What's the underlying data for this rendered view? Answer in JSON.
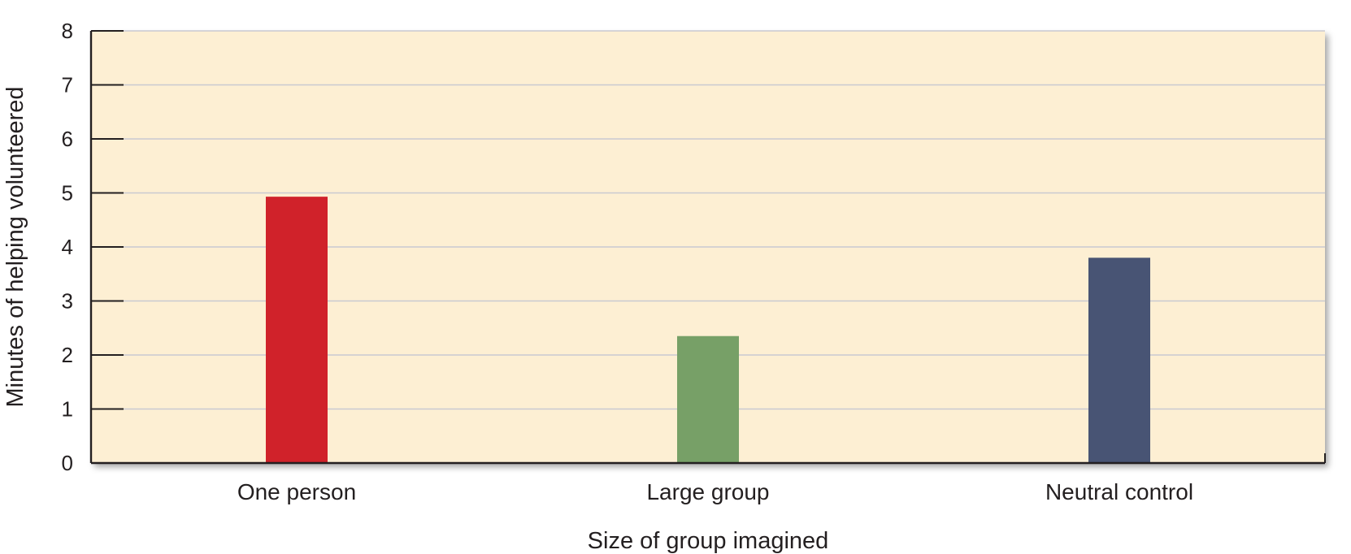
{
  "chart_data": {
    "type": "bar",
    "title": "",
    "xlabel": "Size of group imagined",
    "ylabel": "Minutes of helping volunteered",
    "categories": [
      "One person",
      "Large group",
      "Neutral control"
    ],
    "values": [
      4.93,
      2.35,
      3.8
    ],
    "colors": [
      "#d0222a",
      "#77a067",
      "#485474"
    ],
    "ylim": [
      0,
      8
    ],
    "yticks": [
      "0",
      "1",
      "2",
      "3",
      "4",
      "5",
      "6",
      "7",
      "8"
    ],
    "grid": true,
    "plot_background": "#fdefd3",
    "gridline_color": "#c9c9d1",
    "axis_color": "#231f20",
    "legend": "none"
  }
}
